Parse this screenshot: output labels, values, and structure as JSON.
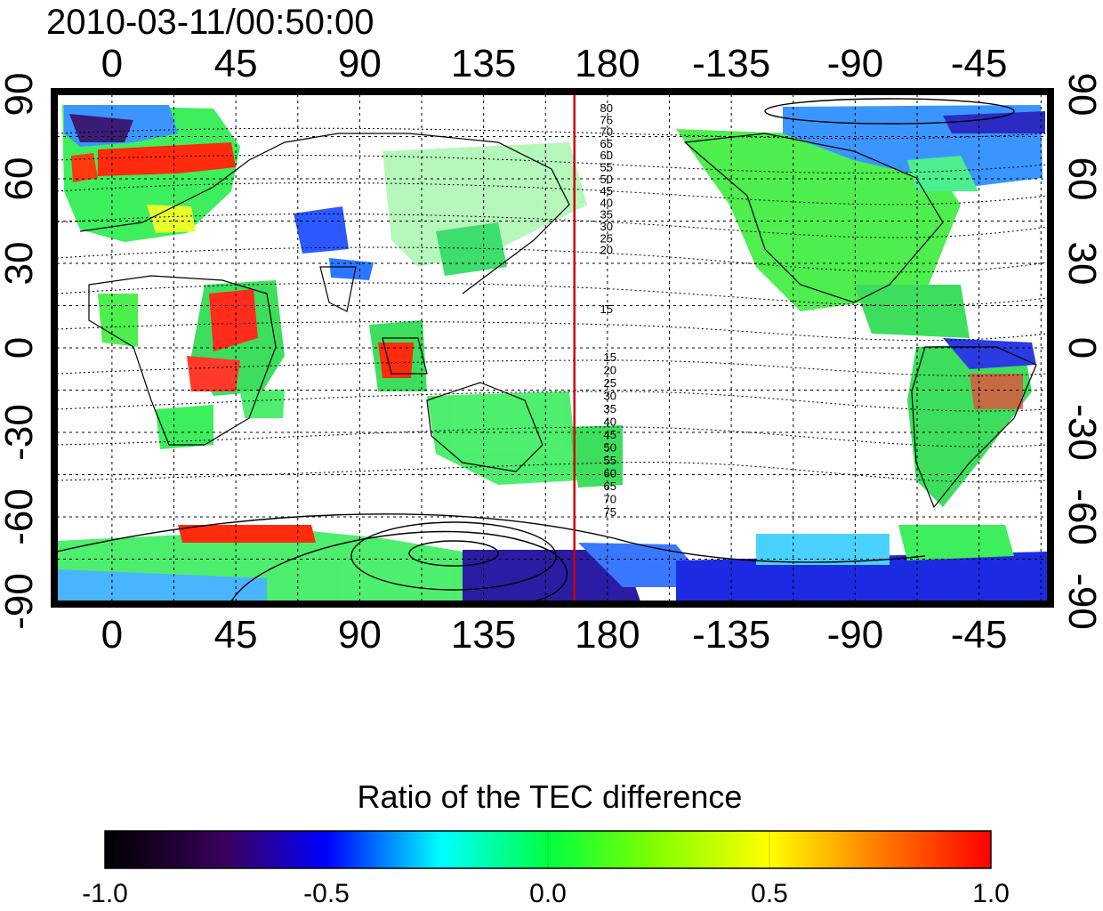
{
  "timestamp": "2010-03-11/00:50:00",
  "map": {
    "lon_ticks": [
      "0",
      "45",
      "90",
      "135",
      "180",
      "-135",
      "-90",
      "-45"
    ],
    "lat_ticks": [
      "90",
      "60",
      "30",
      "0",
      "-30",
      "-60",
      "-90"
    ],
    "lon_range": [
      -20,
      340
    ],
    "lat_range": [
      -90,
      90
    ],
    "grid": true,
    "marker_line": {
      "longitude": 168,
      "color": "#cc0000"
    },
    "contour_labels_north": [
      "80",
      "75",
      "70",
      "65",
      "60",
      "55",
      "50",
      "45",
      "40",
      "35",
      "30",
      "25",
      "20",
      "15"
    ],
    "contour_labels_south": [
      "15",
      "20",
      "25",
      "30",
      "35",
      "40",
      "45",
      "50",
      "55",
      "60",
      "65",
      "70",
      "75"
    ]
  },
  "colorbar": {
    "title": "Ratio of the TEC difference",
    "ticks": [
      "-1.0",
      "-0.5",
      "0.0",
      "0.5",
      "1.0"
    ],
    "range": [
      -1.0,
      1.0
    ]
  },
  "colors": {
    "scale": [
      "#000000",
      "#3b0060",
      "#0000ff",
      "#00ffff",
      "#00ff00",
      "#ffff00",
      "#ff8000",
      "#ff0000"
    ]
  }
}
